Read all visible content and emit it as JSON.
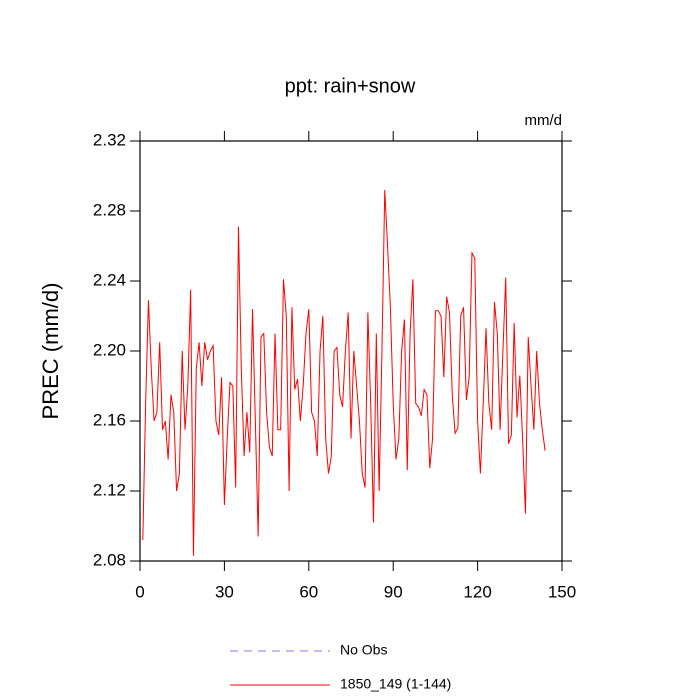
{
  "chart_data": {
    "type": "line",
    "title": "ppt: rain+snow",
    "units": "mm/d",
    "y_label": "PREC  (mm/d)",
    "x": [
      1,
      2,
      3,
      4,
      5,
      6,
      7,
      8,
      9,
      10,
      11,
      12,
      13,
      14,
      15,
      16,
      17,
      18,
      19,
      20,
      21,
      22,
      23,
      24,
      25,
      26,
      27,
      28,
      29,
      30,
      31,
      32,
      33,
      34,
      35,
      36,
      37,
      38,
      39,
      40,
      41,
      42,
      43,
      44,
      45,
      46,
      47,
      48,
      49,
      50,
      51,
      52,
      53,
      54,
      55,
      56,
      57,
      58,
      59,
      60,
      61,
      62,
      63,
      64,
      65,
      66,
      67,
      68,
      69,
      70,
      71,
      72,
      73,
      74,
      75,
      76,
      77,
      78,
      79,
      80,
      81,
      82,
      83,
      84,
      85,
      86,
      87,
      88,
      89,
      90,
      91,
      92,
      93,
      94,
      95,
      96,
      97,
      98,
      99,
      100,
      101,
      102,
      103,
      104,
      105,
      106,
      107,
      108,
      109,
      110,
      111,
      112,
      113,
      114,
      115,
      116,
      117,
      118,
      119,
      120,
      121,
      122,
      123,
      124,
      125,
      126,
      127,
      128,
      129,
      130,
      131,
      132,
      133,
      134,
      135,
      136,
      137,
      138,
      139,
      140,
      141,
      142,
      143,
      144
    ],
    "series": [
      {
        "name": "No Obs",
        "color": "#7f7fff",
        "dashed": true,
        "values": [
          null,
          null,
          null,
          null,
          null,
          null,
          null,
          null,
          null,
          null,
          null,
          null,
          null,
          null,
          null,
          null,
          null,
          null,
          null,
          null,
          null,
          null,
          null,
          null,
          null,
          null,
          null,
          null,
          null,
          null,
          null,
          null,
          null,
          null,
          null,
          null,
          null,
          null,
          null,
          null,
          null,
          null,
          null,
          null,
          null,
          null,
          null,
          null,
          null,
          null,
          null,
          null,
          null,
          null,
          null,
          null,
          null,
          null,
          null,
          null,
          null,
          null,
          null,
          null,
          null,
          null,
          null,
          null,
          null,
          null,
          null,
          null,
          null,
          null,
          null,
          null,
          null,
          null,
          null,
          null,
          null,
          null,
          null,
          null,
          null,
          null,
          null,
          null,
          null,
          null,
          null,
          null,
          null,
          null,
          null,
          null,
          null,
          null,
          null,
          null,
          null,
          null,
          null,
          null,
          null,
          null,
          null,
          null,
          null,
          null,
          null,
          null,
          null,
          null,
          null,
          null,
          null,
          null,
          null,
          null,
          null,
          null,
          null,
          null,
          null,
          null,
          null,
          null,
          null,
          null,
          null,
          null,
          null,
          null,
          null,
          null,
          null,
          null,
          null,
          null,
          null,
          null,
          null,
          null
        ]
      },
      {
        "name": "1850_149 (1-144)",
        "color": "#ff0000",
        "dashed": false,
        "values": [
          2.092,
          2.17,
          2.229,
          2.19,
          2.16,
          2.165,
          2.205,
          2.155,
          2.16,
          2.138,
          2.175,
          2.165,
          2.12,
          2.13,
          2.2,
          2.155,
          2.18,
          2.235,
          2.083,
          2.19,
          2.205,
          2.18,
          2.205,
          2.195,
          2.2,
          2.203,
          2.16,
          2.152,
          2.185,
          2.112,
          2.15,
          2.182,
          2.18,
          2.122,
          2.271,
          2.19,
          2.14,
          2.165,
          2.142,
          2.224,
          2.16,
          2.094,
          2.208,
          2.21,
          2.165,
          2.145,
          2.14,
          2.21,
          2.155,
          2.155,
          2.241,
          2.22,
          2.12,
          2.225,
          2.178,
          2.184,
          2.16,
          2.18,
          2.21,
          2.224,
          2.165,
          2.16,
          2.14,
          2.2,
          2.22,
          2.15,
          2.13,
          2.14,
          2.2,
          2.202,
          2.175,
          2.168,
          2.2,
          2.222,
          2.15,
          2.2,
          2.18,
          2.16,
          2.13,
          2.122,
          2.222,
          2.17,
          2.102,
          2.21,
          2.12,
          2.2,
          2.292,
          2.26,
          2.225,
          2.17,
          2.138,
          2.15,
          2.2,
          2.218,
          2.132,
          2.21,
          2.241,
          2.17,
          2.168,
          2.163,
          2.178,
          2.175,
          2.133,
          2.15,
          2.223,
          2.223,
          2.22,
          2.185,
          2.231,
          2.222,
          2.175,
          2.153,
          2.156,
          2.22,
          2.225,
          2.172,
          2.185,
          2.256,
          2.253,
          2.16,
          2.13,
          2.17,
          2.213,
          2.17,
          2.155,
          2.228,
          2.21,
          2.155,
          2.2,
          2.242,
          2.147,
          2.152,
          2.216,
          2.162,
          2.186,
          2.15,
          2.107,
          2.208,
          2.18,
          2.155,
          2.2,
          2.17,
          2.155,
          2.143
        ]
      }
    ],
    "xlim": [
      0,
      150
    ],
    "xticks": [
      0,
      30,
      60,
      90,
      120,
      150
    ],
    "ylim": [
      2.08,
      2.32
    ],
    "yticks": [
      2.08,
      2.12,
      2.16,
      {
        "value": 2.2,
        "label": "2.20"
      },
      2.24,
      2.28,
      2.32
    ]
  }
}
